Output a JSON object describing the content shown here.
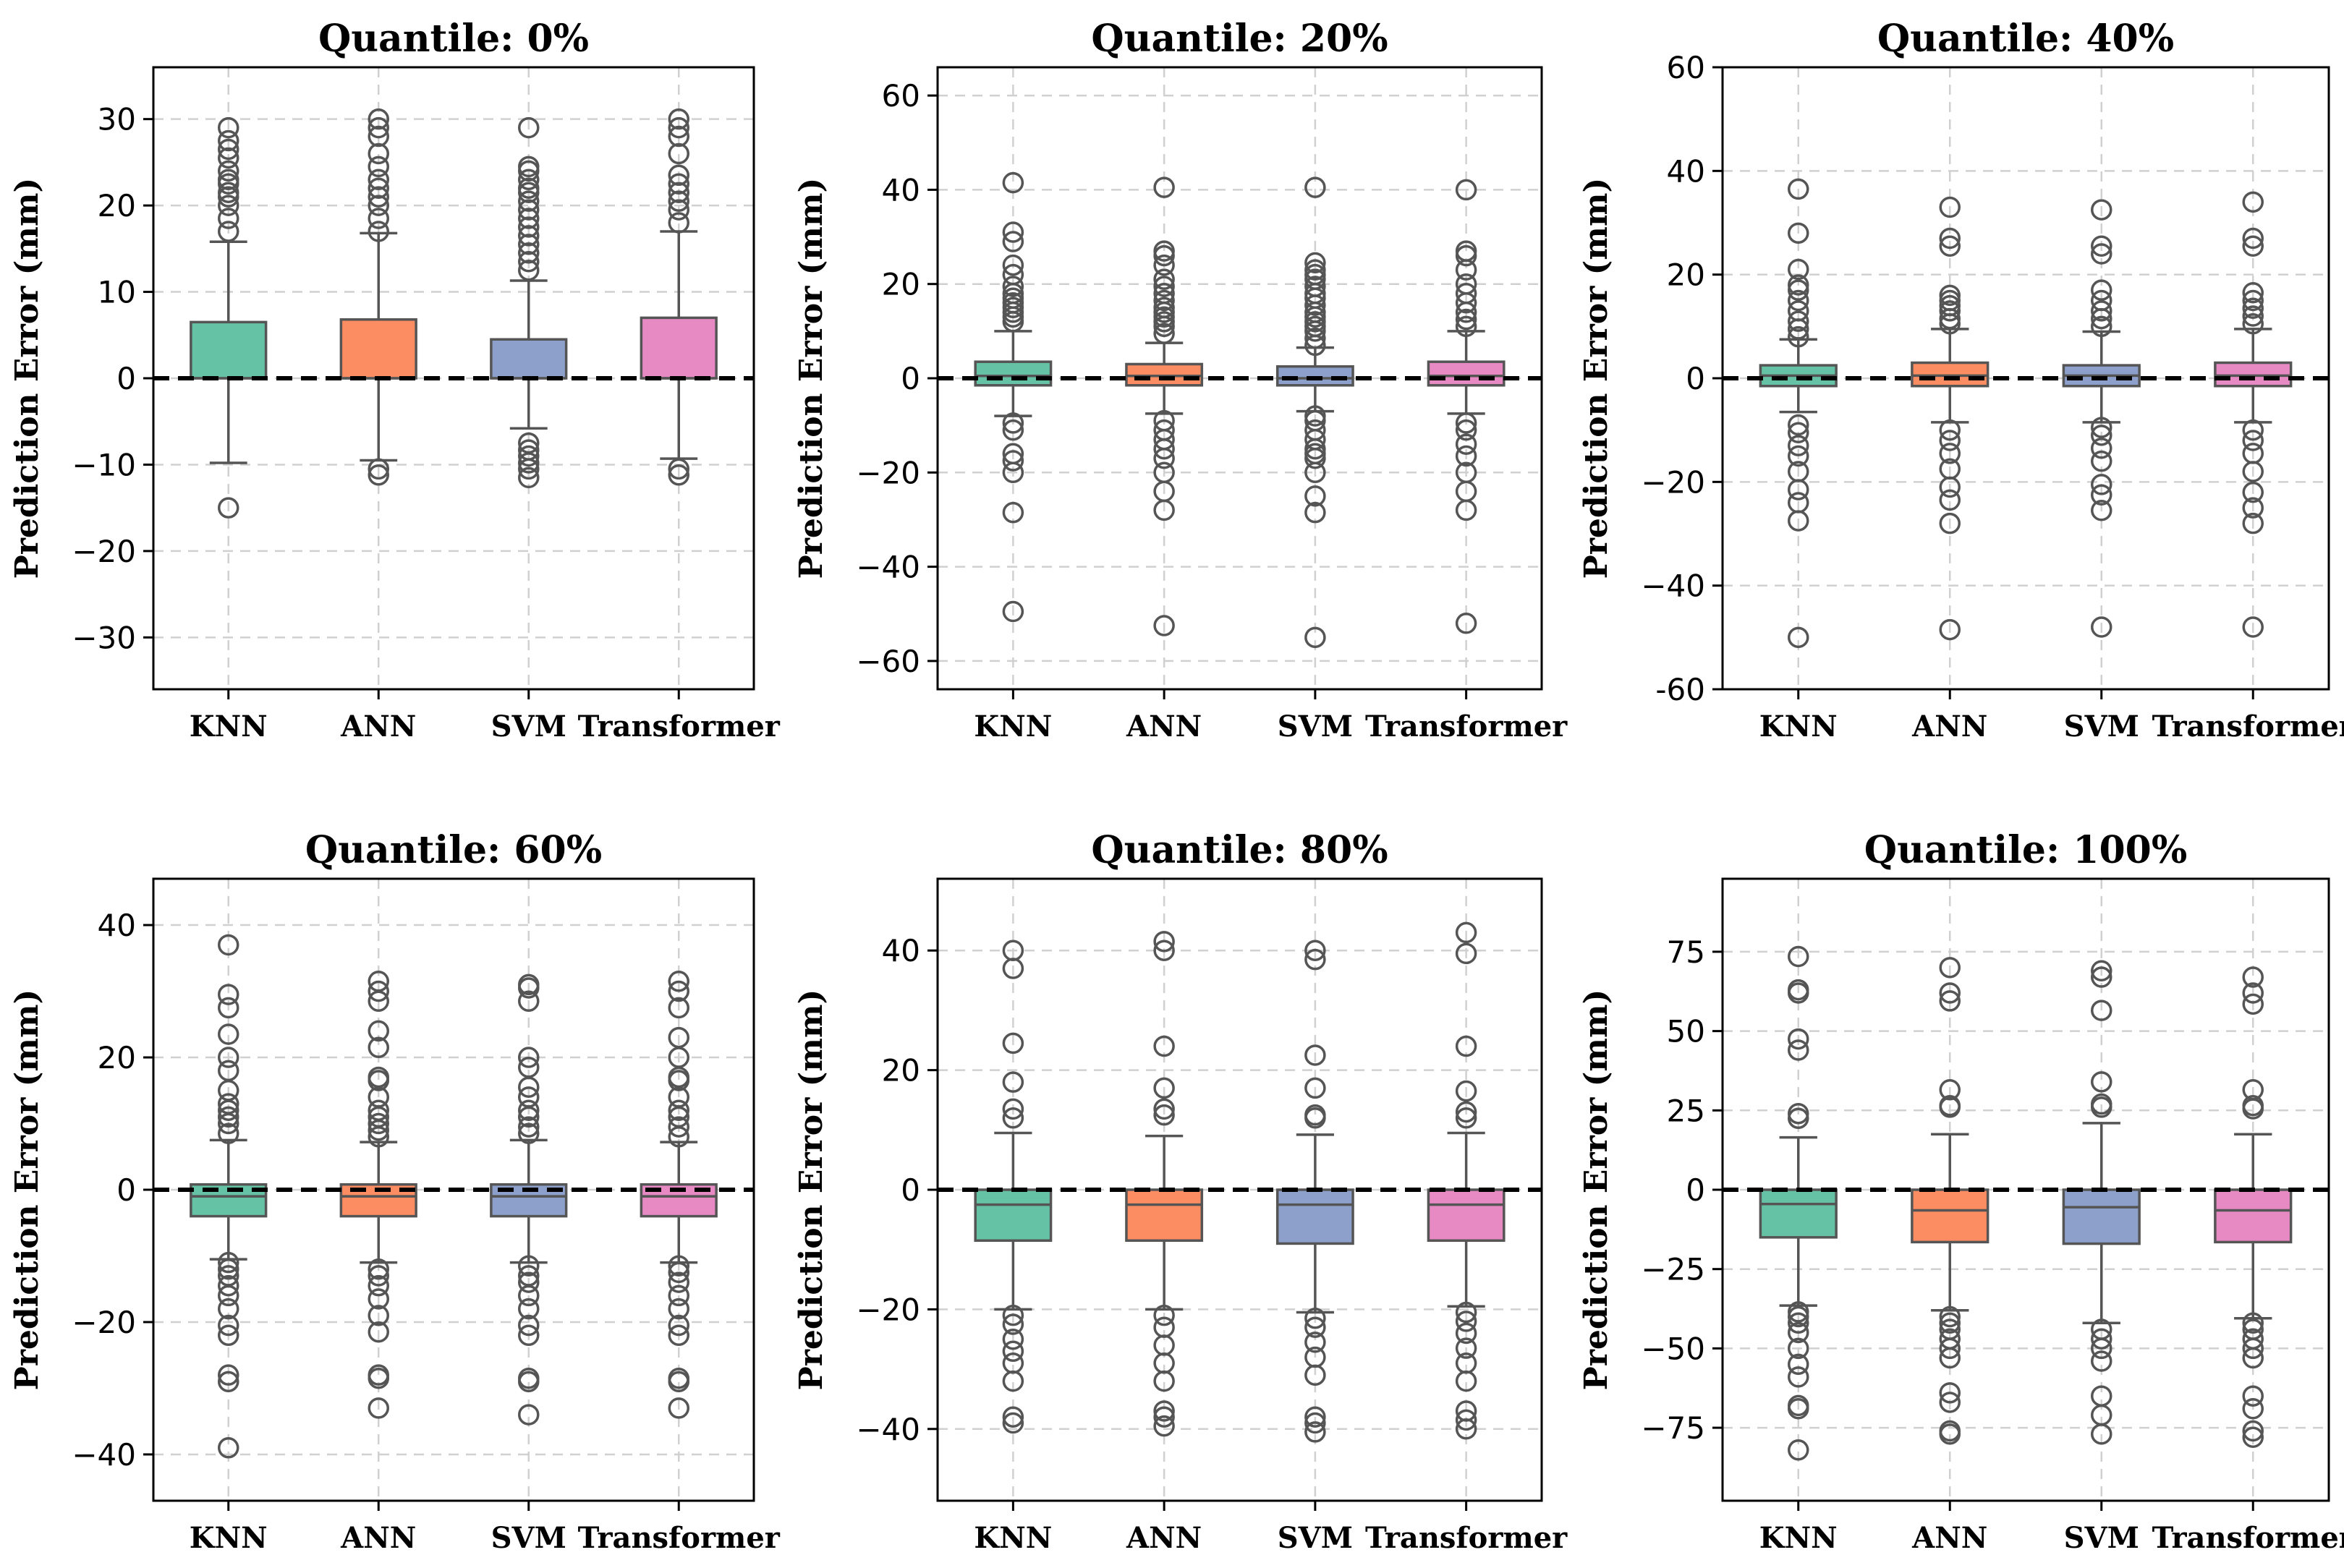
{
  "figure": {
    "ylabel": "Prediction Error (mm)"
  },
  "colors": {
    "KNN": "#66c2a5",
    "ANN": "#fc8d62",
    "SVM": "#8da0cb",
    "Transformer": "#e78ac3",
    "stroke": "#555555",
    "grid": "#d0d0d0",
    "zero_line": "#000000"
  },
  "chart_data": [
    {
      "type": "box",
      "title": "Quantile: 0%",
      "ylabel": "Prediction Error (mm)",
      "categories": [
        "KNN",
        "ANN",
        "SVM",
        "Transformer"
      ],
      "ylim": [
        -36,
        36
      ],
      "yticks": [
        -30,
        -20,
        -10,
        0,
        10,
        20,
        30
      ],
      "yticklabels": [
        "−30",
        "−20",
        "−10",
        "0",
        "10",
        "20",
        "30"
      ],
      "zero_line": 0,
      "boxes": [
        {
          "name": "KNN",
          "whislo": -9.8,
          "q1": 0,
          "med": 0,
          "q3": 6.5,
          "whishi": 15.8,
          "fliers": [
            -15,
            17,
            18.5,
            20,
            21,
            21.5,
            22.5,
            23,
            24,
            25.5,
            26.5,
            27.5,
            29
          ]
        },
        {
          "name": "ANN",
          "whislo": -9.5,
          "q1": 0,
          "med": 0,
          "q3": 6.8,
          "whishi": 16.8,
          "fliers": [
            -11.2,
            -10.5,
            17,
            18.5,
            20,
            21,
            22,
            23,
            24.5,
            26,
            28,
            29,
            30
          ]
        },
        {
          "name": "SVM",
          "whislo": -5.8,
          "q1": 0,
          "med": 0,
          "q3": 4.5,
          "whishi": 11.3,
          "fliers": [
            -11.5,
            -10.5,
            -9.8,
            -9,
            -8.3,
            -7.5,
            12.5,
            13.5,
            14.5,
            15.5,
            16.5,
            17.5,
            18.5,
            19.5,
            20.5,
            21.5,
            22,
            23,
            24,
            24.5,
            29
          ]
        },
        {
          "name": "Transformer",
          "whislo": -9.3,
          "q1": 0,
          "med": 0,
          "q3": 7.0,
          "whishi": 17.0,
          "fliers": [
            -11.2,
            -10.5,
            18,
            19.5,
            20.5,
            21.5,
            22.5,
            23.5,
            26,
            28,
            29,
            30
          ]
        }
      ]
    },
    {
      "type": "box",
      "title": "Quantile: 20%",
      "ylabel": "Prediction Error (mm)",
      "categories": [
        "KNN",
        "ANN",
        "SVM",
        "Transformer"
      ],
      "ylim": [
        -66,
        66
      ],
      "yticks": [
        -60,
        -40,
        -20,
        0,
        20,
        40,
        60
      ],
      "yticklabels": [
        "−60",
        "−40",
        "−20",
        "0",
        "20",
        "40",
        "60"
      ],
      "zero_line": 0,
      "boxes": [
        {
          "name": "KNN",
          "whislo": -8,
          "q1": -1.5,
          "med": 0.5,
          "q3": 3.5,
          "whishi": 10,
          "fliers": [
            -49.5,
            -28.5,
            -20,
            -17.5,
            -16,
            -11,
            -9.5,
            12,
            13,
            14,
            15,
            16,
            17,
            18,
            19.5,
            22,
            24,
            29,
            31,
            41.5
          ]
        },
        {
          "name": "ANN",
          "whislo": -7.5,
          "q1": -1.5,
          "med": 0.5,
          "q3": 3.0,
          "whishi": 7.5,
          "fliers": [
            -52.5,
            -28,
            -24,
            -20,
            -17,
            -15,
            -13,
            -11,
            -9,
            9.5,
            11,
            12,
            13,
            14,
            15,
            16.5,
            18,
            19.5,
            21,
            24,
            26,
            27,
            40.5
          ]
        },
        {
          "name": "SVM",
          "whislo": -7,
          "q1": -1.5,
          "med": 0,
          "q3": 2.5,
          "whishi": 6.5,
          "fliers": [
            -55,
            -28.5,
            -25,
            -20,
            -17,
            -16,
            -15,
            -13,
            -11,
            -9,
            -8,
            7,
            8.5,
            10,
            11,
            12,
            13,
            14,
            15.5,
            17,
            18,
            19.5,
            21,
            22,
            23,
            24.5,
            40.5
          ]
        },
        {
          "name": "Transformer",
          "whislo": -7.5,
          "q1": -1.5,
          "med": 0.5,
          "q3": 3.5,
          "whishi": 10,
          "fliers": [
            -52,
            -28,
            -24,
            -20,
            -16.5,
            -14,
            -11,
            -9.5,
            11,
            12.5,
            14,
            16,
            18,
            20,
            23,
            26,
            27,
            40
          ]
        }
      ]
    },
    {
      "type": "box",
      "title": "Quantile: 40%",
      "ylabel": "Prediction Error (mm)",
      "categories": [
        "KNN",
        "ANN",
        "SVM",
        "Transformer"
      ],
      "ylim": [
        -60,
        60
      ],
      "yticks": [
        -60,
        -40,
        -20,
        0,
        20,
        40,
        60
      ],
      "yticklabels": [
        "-60",
        "−40",
        "−20",
        "0",
        "20",
        "40",
        "60"
      ],
      "zero_line": 0,
      "boxes": [
        {
          "name": "KNN",
          "whislo": -6.5,
          "q1": -1.5,
          "med": 0.5,
          "q3": 2.5,
          "whishi": 7.5,
          "fliers": [
            -50,
            -27.5,
            -24,
            -21.5,
            -18,
            -15,
            -13,
            -10.5,
            -9,
            8,
            9.5,
            11,
            13,
            15,
            17,
            18,
            21,
            28,
            36.5
          ]
        },
        {
          "name": "ANN",
          "whislo": -8.5,
          "q1": -1.5,
          "med": 0.5,
          "q3": 3.0,
          "whishi": 9.5,
          "fliers": [
            -48.5,
            -28,
            -23.5,
            -21,
            -17.5,
            -14.5,
            -12,
            -10,
            10.5,
            11.5,
            13,
            14,
            15,
            16,
            25.5,
            27,
            33
          ]
        },
        {
          "name": "SVM",
          "whislo": -8.5,
          "q1": -1.5,
          "med": 0.5,
          "q3": 2.5,
          "whishi": 9,
          "fliers": [
            -48,
            -25.5,
            -22.5,
            -20.5,
            -16,
            -13.5,
            -11,
            -9.5,
            10,
            11.5,
            13,
            15,
            17,
            24,
            25.5,
            32.5
          ]
        },
        {
          "name": "Transformer",
          "whislo": -8.5,
          "q1": -1.5,
          "med": 0.5,
          "q3": 3.0,
          "whishi": 9.5,
          "fliers": [
            -48,
            -28,
            -25,
            -22,
            -18,
            -14.5,
            -12,
            -10,
            10.5,
            12,
            13.5,
            15,
            16.5,
            25.5,
            27,
            34
          ]
        }
      ]
    },
    {
      "type": "box",
      "title": "Quantile: 60%",
      "ylabel": "Prediction Error (mm)",
      "categories": [
        "KNN",
        "ANN",
        "SVM",
        "Transformer"
      ],
      "ylim": [
        -47,
        47
      ],
      "yticks": [
        -40,
        -20,
        0,
        20,
        40
      ],
      "yticklabels": [
        "−40",
        "−20",
        "0",
        "20",
        "40"
      ],
      "zero_line": 0,
      "boxes": [
        {
          "name": "KNN",
          "whislo": -10.5,
          "q1": -4,
          "med": -1,
          "q3": 0.8,
          "whishi": 7.5,
          "fliers": [
            -39,
            -29,
            -28,
            -22,
            -20.5,
            -18,
            -16,
            -14.5,
            -13,
            -12,
            -11,
            8.5,
            10,
            11,
            12,
            13,
            15,
            18,
            20,
            23.5,
            27.5,
            29.5,
            37
          ]
        },
        {
          "name": "ANN",
          "whislo": -11,
          "q1": -4,
          "med": -1,
          "q3": 0.8,
          "whishi": 7.2,
          "fliers": [
            -33,
            -28.5,
            -28,
            -21.5,
            -19,
            -16.5,
            -14.5,
            -13,
            -12,
            8,
            9,
            10,
            11,
            12,
            14,
            16.5,
            17,
            21.5,
            24,
            28.5,
            30,
            31.5
          ]
        },
        {
          "name": "SVM",
          "whislo": -11,
          "q1": -4,
          "med": -1,
          "q3": 0.8,
          "whishi": 7.5,
          "fliers": [
            -34,
            -29,
            -28.5,
            -22,
            -20.5,
            -18,
            -16,
            -14,
            -13,
            -11.5,
            8.5,
            9.5,
            11,
            12,
            14,
            15.5,
            18.5,
            20,
            28.5,
            30.5,
            31
          ]
        },
        {
          "name": "Transformer",
          "whislo": -11,
          "q1": -4,
          "med": -1,
          "q3": 0.8,
          "whishi": 7.2,
          "fliers": [
            -33,
            -29,
            -28.5,
            -22,
            -20.5,
            -18,
            -16,
            -14,
            -12.5,
            -11.5,
            8,
            9.5,
            11,
            12,
            14,
            16.5,
            17,
            20,
            23,
            27.5,
            30,
            31.5
          ]
        }
      ]
    },
    {
      "type": "box",
      "title": "Quantile: 80%",
      "ylabel": "Prediction Error (mm)",
      "categories": [
        "KNN",
        "ANN",
        "SVM",
        "Transformer"
      ],
      "ylim": [
        -52,
        52
      ],
      "yticks": [
        -40,
        -20,
        0,
        20,
        40
      ],
      "yticklabels": [
        "−40",
        "−20",
        "0",
        "20",
        "40"
      ],
      "zero_line": 0,
      "boxes": [
        {
          "name": "KNN",
          "whislo": -20,
          "q1": -8.5,
          "med": -2.5,
          "q3": 0,
          "whishi": 9.5,
          "fliers": [
            -39,
            -38,
            -32,
            -29,
            -27,
            -25,
            -22.5,
            -21,
            12,
            13.5,
            18,
            24.5,
            37,
            40
          ]
        },
        {
          "name": "ANN",
          "whislo": -20,
          "q1": -8.5,
          "med": -2.5,
          "q3": 0,
          "whishi": 9,
          "fliers": [
            -39.5,
            -38,
            -37,
            -32,
            -29,
            -26,
            -23,
            -21,
            12.5,
            13.5,
            17,
            24,
            40,
            41.5
          ]
        },
        {
          "name": "SVM",
          "whislo": -20.5,
          "q1": -9,
          "med": -2.5,
          "q3": 0,
          "whishi": 9.2,
          "fliers": [
            -40.5,
            -39,
            -38,
            -31,
            -28,
            -25.5,
            -23,
            -21.5,
            12,
            12.5,
            17,
            22.5,
            38.5,
            40
          ]
        },
        {
          "name": "Transformer",
          "whislo": -19.5,
          "q1": -8.5,
          "med": -2.5,
          "q3": 0,
          "whishi": 9.5,
          "fliers": [
            -40,
            -38.5,
            -37,
            -32,
            -29,
            -26.5,
            -24,
            -22,
            -20.5,
            12,
            13,
            16.5,
            24,
            39.5,
            43
          ]
        }
      ]
    },
    {
      "type": "box",
      "title": "Quantile: 100%",
      "ylabel": "Prediction Error (mm)",
      "categories": [
        "KNN",
        "ANN",
        "SVM",
        "Transformer"
      ],
      "ylim": [
        -98,
        98
      ],
      "yticks": [
        -75,
        -50,
        -25,
        0,
        25,
        50,
        75
      ],
      "yticklabels": [
        "−75",
        "−50",
        "−25",
        "0",
        "25",
        "50",
        "75"
      ],
      "zero_line": 0,
      "boxes": [
        {
          "name": "KNN",
          "whislo": -36.5,
          "q1": -15,
          "med": -4.5,
          "q3": 0,
          "whishi": 16.5,
          "fliers": [
            -82,
            -69,
            -68,
            -59,
            -55,
            -50,
            -45,
            -42,
            -40,
            -38.5,
            22.5,
            24,
            44,
            47.5,
            62,
            63,
            73.5
          ]
        },
        {
          "name": "ANN",
          "whislo": -38,
          "q1": -16.5,
          "med": -6.5,
          "q3": 0,
          "whishi": 17.5,
          "fliers": [
            -77,
            -76,
            -67,
            -64,
            -53,
            -50,
            -47,
            -44,
            -42,
            -40,
            26,
            26.5,
            31.5,
            59.5,
            62,
            70
          ]
        },
        {
          "name": "SVM",
          "whislo": -42,
          "q1": -17,
          "med": -5.5,
          "q3": 0,
          "whishi": 21,
          "fliers": [
            -77,
            -71,
            -65,
            -54,
            -50,
            -47,
            -44,
            26,
            27,
            34,
            56.5,
            67,
            69
          ]
        },
        {
          "name": "Transformer",
          "whislo": -40.5,
          "q1": -16.5,
          "med": -6.5,
          "q3": 0,
          "whishi": 17.5,
          "fliers": [
            -78,
            -76,
            -69,
            -65,
            -53,
            -50,
            -47,
            -44,
            -42,
            25.5,
            26.5,
            31.5,
            58.5,
            62,
            67
          ]
        }
      ]
    }
  ]
}
